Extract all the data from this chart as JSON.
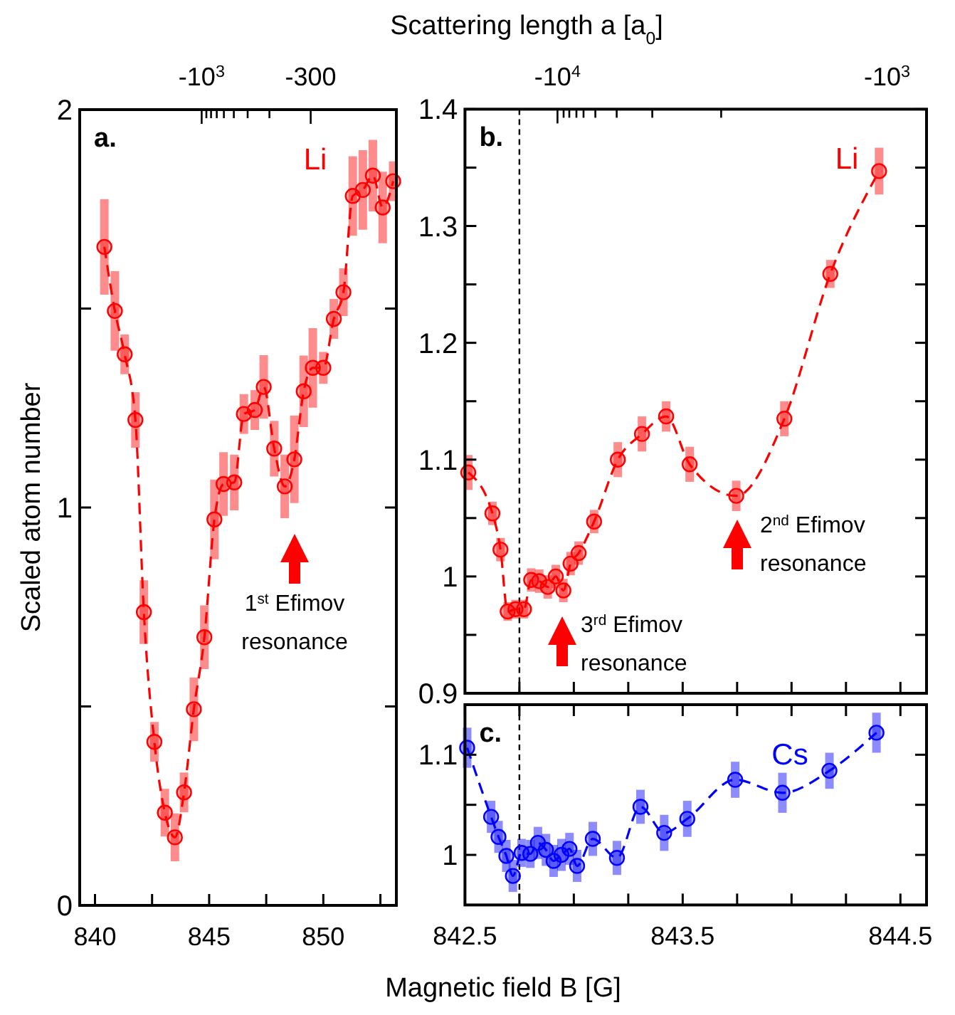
{
  "chart_data": [
    {
      "type": "line",
      "title": "a.",
      "ylabel": "Scaled atom number",
      "xlim": [
        839.33,
        853.2
      ],
      "ylim": [
        0,
        2
      ],
      "xticks": [
        840,
        {
          "value": 842.5,
          "label": null
        },
        845,
        {
          "value": 847.5,
          "label": null
        },
        850,
        {
          "value": 852.5,
          "label": null
        }
      ],
      "yticks": [
        0,
        {
          "value": 0.5,
          "label": null
        },
        1,
        {
          "value": 1.5,
          "label": null
        },
        2
      ],
      "series": [
        {
          "name": "Li",
          "color": "#ff0000",
          "marker": "circle",
          "line_style": "dashed",
          "x": [
            840.41,
            840.87,
            841.3,
            841.77,
            842.14,
            842.6,
            843.06,
            843.5,
            843.9,
            844.33,
            844.79,
            845.23,
            845.63,
            846.1,
            846.52,
            847.0,
            847.39,
            847.85,
            848.31,
            848.73,
            849.14,
            849.54,
            850.0,
            850.46,
            850.88,
            851.29,
            851.73,
            852.17,
            852.6,
            853.06
          ],
          "values": [
            1.655,
            1.494,
            1.385,
            1.22,
            0.737,
            0.411,
            0.233,
            0.171,
            0.284,
            0.493,
            0.674,
            0.97,
            1.059,
            1.063,
            1.235,
            1.245,
            1.303,
            1.148,
            1.053,
            1.121,
            1.292,
            1.351,
            1.351,
            1.474,
            1.541,
            1.783,
            1.798,
            1.834,
            1.754,
            1.82
          ],
          "errors": [
            0.12,
            0.1,
            0.05,
            0.07,
            0.08,
            0.05,
            0.06,
            0.06,
            0.05,
            0.08,
            0.08,
            0.1,
            0.08,
            0.07,
            0.05,
            0.05,
            0.08,
            0.07,
            0.08,
            0.11,
            0.09,
            0.1,
            0.04,
            0.05,
            0.06,
            0.1,
            0.1,
            0.09,
            0.09,
            0.05
          ]
        }
      ],
      "annotations": [
        "1$^{st}$ Efimov resonance",
        "-10$^{3}$",
        "-300"
      ]
    },
    {
      "type": "line",
      "title": "b.",
      "x2label": "Scattering length a [a$_{0}$]",
      "tick_labels": "y",
      "xlim": [
        842.5,
        844.62
      ],
      "ylim": [
        0.9,
        1.4
      ],
      "xticks": [
        842.5,
        842.75,
        843,
        843.25,
        843.5,
        843.75,
        844,
        844.25,
        844.5
      ],
      "yticks": [
        0.9,
        {
          "value": 0.95,
          "label": null
        },
        1,
        {
          "value": 1.05,
          "label": null
        },
        1.1,
        {
          "value": 1.15,
          "label": null
        },
        1.2,
        {
          "value": 1.25,
          "label": null
        },
        1.3,
        {
          "value": 1.35,
          "label": null
        },
        1.4
      ],
      "ref_lines": [
        {
          "axis": "x",
          "value": 842.75,
          "color": "#000000",
          "line_style": "dashed"
        }
      ],
      "series": [
        {
          "name": "Li",
          "color": "#ff0000",
          "marker": "circle",
          "line_style": "dashed",
          "x": [
            842.515,
            842.626,
            842.663,
            842.696,
            842.732,
            842.771,
            842.804,
            842.841,
            842.88,
            842.917,
            842.952,
            842.985,
            843.022,
            843.093,
            843.202,
            843.313,
            843.424,
            843.532,
            843.746,
            843.967,
            844.178,
            844.402
          ],
          "values": [
            1.089,
            1.054,
            1.023,
            0.97,
            0.972,
            0.972,
            0.997,
            0.996,
            0.991,
            1.0,
            0.988,
            1.011,
            1.02,
            1.047,
            1.1,
            1.122,
            1.137,
            1.096,
            1.069,
            1.135,
            1.259,
            1.347
          ],
          "errors": [
            0.015,
            0.01,
            0.01,
            0.008,
            0.008,
            0.008,
            0.01,
            0.01,
            0.01,
            0.01,
            0.01,
            0.01,
            0.01,
            0.01,
            0.015,
            0.015,
            0.013,
            0.015,
            0.013,
            0.015,
            0.012,
            0.02
          ]
        }
      ],
      "annotations": [
        "3$^{rd}$ Efimov resonance",
        "2$^{nd}$ Efimov resonance",
        "-10$^{4}$",
        "-10$^{3}$"
      ]
    },
    {
      "type": "line",
      "title": "c.",
      "xlabel": "Magnetic field B [G]",
      "xlim": [
        842.5,
        844.62
      ],
      "ylim": [
        0.95,
        1.15
      ],
      "xticks": [
        842.5,
        {
          "value": 842.75,
          "label": null
        },
        {
          "value": 843,
          "label": null
        },
        {
          "value": 843.25,
          "label": null
        },
        843.5,
        {
          "value": 843.75,
          "label": null
        },
        {
          "value": 844,
          "label": null
        },
        {
          "value": 844.25,
          "label": null
        },
        844.5
      ],
      "yticks": [
        1,
        {
          "value": 1.05,
          "label": null
        },
        1.1
      ],
      "ref_lines": [
        {
          "axis": "x",
          "value": 842.75,
          "color": "#000000",
          "line_style": "dashed"
        }
      ],
      "series": [
        {
          "name": "Cs",
          "color": "#0000ff",
          "marker": "circle",
          "line_style": "dashed",
          "x": [
            842.51,
            842.62,
            842.654,
            842.69,
            842.72,
            842.76,
            842.8,
            842.835,
            842.872,
            842.907,
            842.943,
            842.98,
            843.015,
            843.087,
            843.198,
            843.306,
            843.415,
            843.521,
            843.741,
            843.958,
            844.174,
            844.39
          ],
          "values": [
            1.107,
            1.038,
            1.018,
            0.999,
            0.979,
            1.002,
            1.001,
            1.012,
            1.005,
            0.994,
            1.0,
            1.006,
            0.989,
            1.016,
            0.997,
            1.048,
            1.022,
            1.036,
            1.075,
            1.062,
            1.084,
            1.122
          ],
          "errors": [
            0.02,
            0.016,
            0.016,
            0.016,
            0.016,
            0.014,
            0.014,
            0.016,
            0.016,
            0.016,
            0.016,
            0.016,
            0.016,
            0.017,
            0.017,
            0.017,
            0.018,
            0.018,
            0.018,
            0.02,
            0.018,
            0.02
          ]
        }
      ]
    }
  ]
}
